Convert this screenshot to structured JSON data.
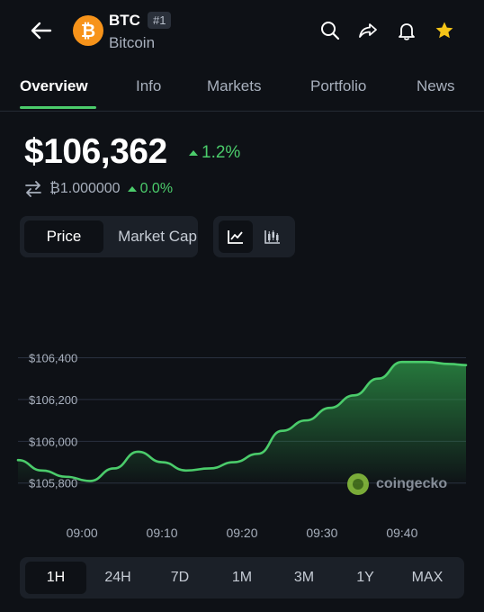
{
  "header": {
    "symbol": "BTC",
    "rank": "#1",
    "name": "Bitcoin",
    "logo_glyph": "₿",
    "icons": [
      "back-arrow-icon",
      "search-icon",
      "share-icon",
      "bell-icon",
      "star-icon"
    ],
    "star_color": "#f5c518",
    "coin_color": "#f7931a"
  },
  "tabs": [
    "Overview",
    "Info",
    "Markets",
    "Portfolio",
    "News"
  ],
  "active_tab": "Overview",
  "price": {
    "value": "$106,362",
    "change": "1.2%",
    "btc_value": "₿1.000000",
    "btc_change": "0.0%",
    "up_color": "#4bcc6b"
  },
  "toggles": {
    "metric_options": [
      "Price",
      "Market Cap"
    ],
    "metric_selected": "Price",
    "chart_types": [
      "line-chart-icon",
      "candlestick-chart-icon"
    ],
    "chart_type_selected": "line-chart-icon"
  },
  "chart_data": {
    "type": "area",
    "x": [
      "08:52",
      "08:55",
      "08:58",
      "09:01",
      "09:04",
      "09:07",
      "09:10",
      "09:13",
      "09:16",
      "09:19",
      "09:22",
      "09:25",
      "09:28",
      "09:31",
      "09:34",
      "09:37",
      "09:40",
      "09:43",
      "09:46",
      "09:48"
    ],
    "values": [
      105910,
      105860,
      105830,
      105810,
      105870,
      105950,
      105900,
      105860,
      105870,
      105900,
      105940,
      106050,
      106100,
      106160,
      106220,
      106300,
      106380,
      106380,
      106370,
      106365
    ],
    "y_ticks": [
      "$106,400",
      "$106,200",
      "$106,000",
      "$105,800"
    ],
    "y_tick_values": [
      106400,
      106200,
      106000,
      105800
    ],
    "x_ticks": [
      "09:00",
      "09:10",
      "09:20",
      "09:30",
      "09:40"
    ],
    "ylim": [
      105760,
      106510
    ],
    "line_color": "#4bcc6b",
    "grid": true
  },
  "watermark": "coingecko",
  "ranges": [
    "1H",
    "24H",
    "7D",
    "1M",
    "3M",
    "1Y",
    "MAX"
  ],
  "range_selected": "1H"
}
